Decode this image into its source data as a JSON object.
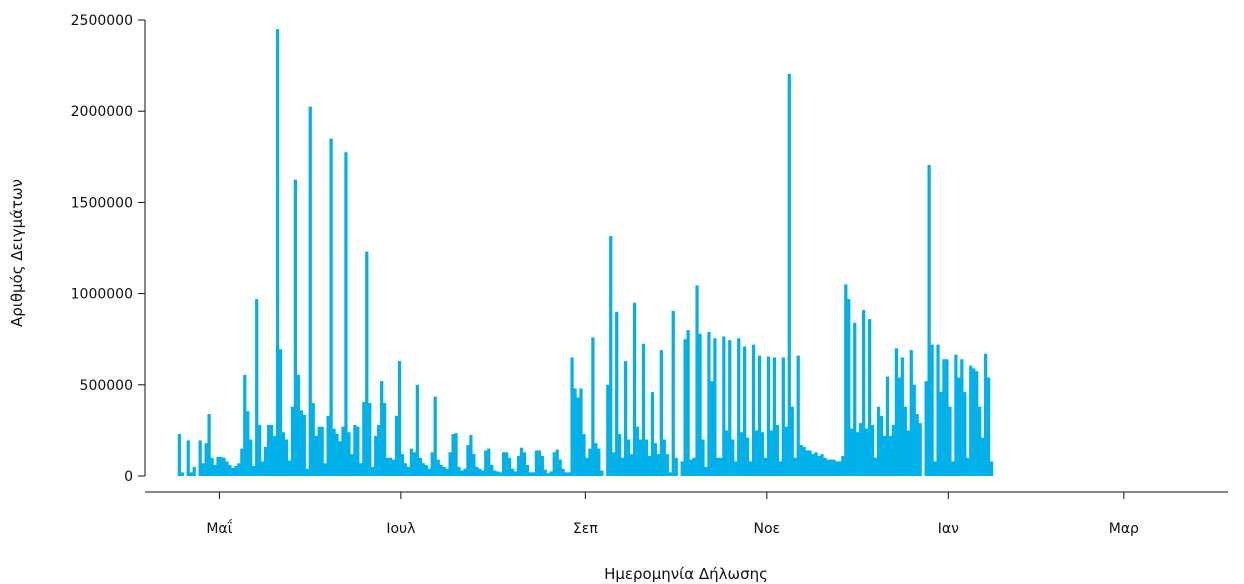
{
  "chart_data": {
    "type": "bar",
    "title": "",
    "xlabel": "Ημερομηνία Δήλωσης",
    "ylabel": "Αριθμός Δειγμάτων",
    "ylim": [
      0,
      2500000
    ],
    "y_ticks": [
      0,
      500000,
      1000000,
      1500000,
      2000000,
      2500000
    ],
    "y_tick_labels": [
      "0",
      "500000",
      "1000000",
      "1500000",
      "2000000",
      "2500000"
    ],
    "x_range": [
      "2020-04-06",
      "2021-04-05"
    ],
    "x_ticks": [
      "2020-05-01",
      "2020-07-01",
      "2020-09-01",
      "2020-11-01",
      "2021-01-01",
      "2021-03-01"
    ],
    "x_tick_labels": [
      "Μαΐ",
      "Ιουλ",
      "Σεπ",
      "Νοε",
      "Ιαν",
      "Μαρ"
    ],
    "grid": false,
    "legend": "none",
    "bar_color": "#00b0e8",
    "start_date": "2020-04-17",
    "series": [
      {
        "values": [
          230000,
          20000,
          0,
          195000,
          20000,
          50000,
          0,
          195000,
          70000,
          180000,
          340000,
          100000,
          60000,
          105000,
          105000,
          100000,
          80000,
          60000,
          45000,
          55000,
          70000,
          150000,
          555000,
          355000,
          200000,
          55000,
          970000,
          280000,
          80000,
          160000,
          280000,
          280000,
          220000,
          2450000,
          695000,
          240000,
          200000,
          85000,
          380000,
          1625000,
          555000,
          360000,
          335000,
          40000,
          2025000,
          400000,
          220000,
          270000,
          270000,
          70000,
          330000,
          1850000,
          260000,
          230000,
          190000,
          270000,
          1775000,
          240000,
          120000,
          280000,
          270000,
          70000,
          405000,
          1230000,
          400000,
          50000,
          220000,
          280000,
          520000,
          400000,
          100000,
          100000,
          90000,
          330000,
          630000,
          120000,
          70000,
          50000,
          150000,
          130000,
          500000,
          100000,
          70000,
          60000,
          40000,
          130000,
          435000,
          90000,
          60000,
          50000,
          40000,
          130000,
          230000,
          235000,
          50000,
          30000,
          40000,
          170000,
          225000,
          120000,
          50000,
          40000,
          30000,
          140000,
          150000,
          60000,
          30000,
          25000,
          20000,
          130000,
          130000,
          100000,
          40000,
          25000,
          110000,
          155000,
          130000,
          60000,
          20000,
          20000,
          140000,
          140000,
          110000,
          35000,
          15000,
          25000,
          130000,
          145000,
          90000,
          40000,
          20000,
          20000,
          650000,
          480000,
          430000,
          480000,
          230000,
          100000,
          150000,
          760000,
          180000,
          150000,
          30000,
          0,
          500000,
          1315000,
          130000,
          900000,
          230000,
          100000,
          630000,
          200000,
          120000,
          950000,
          270000,
          200000,
          725000,
          200000,
          110000,
          460000,
          180000,
          120000,
          690000,
          200000,
          120000,
          20000,
          905000,
          100000,
          0,
          80000,
          750000,
          800000,
          90000,
          100000,
          1045000,
          780000,
          200000,
          50000,
          790000,
          520000,
          755000,
          100000,
          100000,
          765000,
          250000,
          745000,
          200000,
          80000,
          755000,
          240000,
          710000,
          210000,
          80000,
          720000,
          250000,
          660000,
          240000,
          100000,
          655000,
          250000,
          650000,
          280000,
          80000,
          650000,
          270000,
          2205000,
          380000,
          100000,
          660000,
          170000,
          160000,
          140000,
          140000,
          120000,
          130000,
          110000,
          120000,
          100000,
          90000,
          90000,
          90000,
          80000,
          80000,
          110000,
          1050000,
          970000,
          260000,
          840000,
          240000,
          290000,
          910000,
          260000,
          860000,
          280000,
          100000,
          380000,
          330000,
          220000,
          545000,
          220000,
          280000,
          700000,
          540000,
          650000,
          380000,
          250000,
          690000,
          500000,
          340000,
          290000,
          0,
          520000,
          1705000,
          720000,
          80000,
          720000,
          460000,
          640000,
          640000,
          380000,
          80000,
          665000,
          540000,
          640000,
          460000,
          100000,
          605000,
          590000,
          575000,
          380000,
          210000,
          670000,
          540000,
          80000
        ]
      }
    ]
  }
}
